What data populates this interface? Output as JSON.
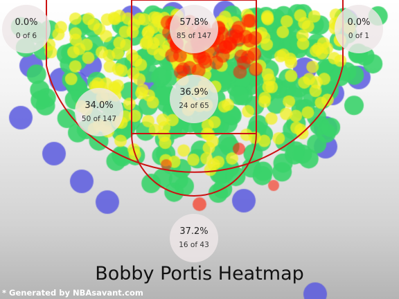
{
  "chart_data": {
    "type": "heatmap",
    "title": "Bobby Portis Heatmap",
    "zones": [
      {
        "name": "left-corner-three",
        "pct": "0.0%",
        "made": 0,
        "att": 6,
        "made_text": "0 of 6"
      },
      {
        "name": "restricted-area",
        "pct": "57.8%",
        "made": 85,
        "att": 147,
        "made_text": "85 of 147"
      },
      {
        "name": "right-corner-three",
        "pct": "0.0%",
        "made": 0,
        "att": 1,
        "made_text": "0 of 1"
      },
      {
        "name": "left-midrange",
        "pct": "34.0%",
        "made": 50,
        "att": 147,
        "made_text": "50 of 147"
      },
      {
        "name": "paint-non-ra",
        "pct": "36.9%",
        "made": 24,
        "att": 65,
        "made_text": "24 of 65"
      },
      {
        "name": "above-break-three",
        "pct": "37.2%",
        "made": 16,
        "att": 43,
        "made_text": "16 of 43"
      }
    ],
    "colors": {
      "court_lines": "#cc1111",
      "cold": "#5b5bdf",
      "cool": "#3ad36a",
      "warm": "#f0f020",
      "hot": "#ff1a00"
    }
  },
  "footer": {
    "credit": "* Generated by NBAsavant.com"
  }
}
